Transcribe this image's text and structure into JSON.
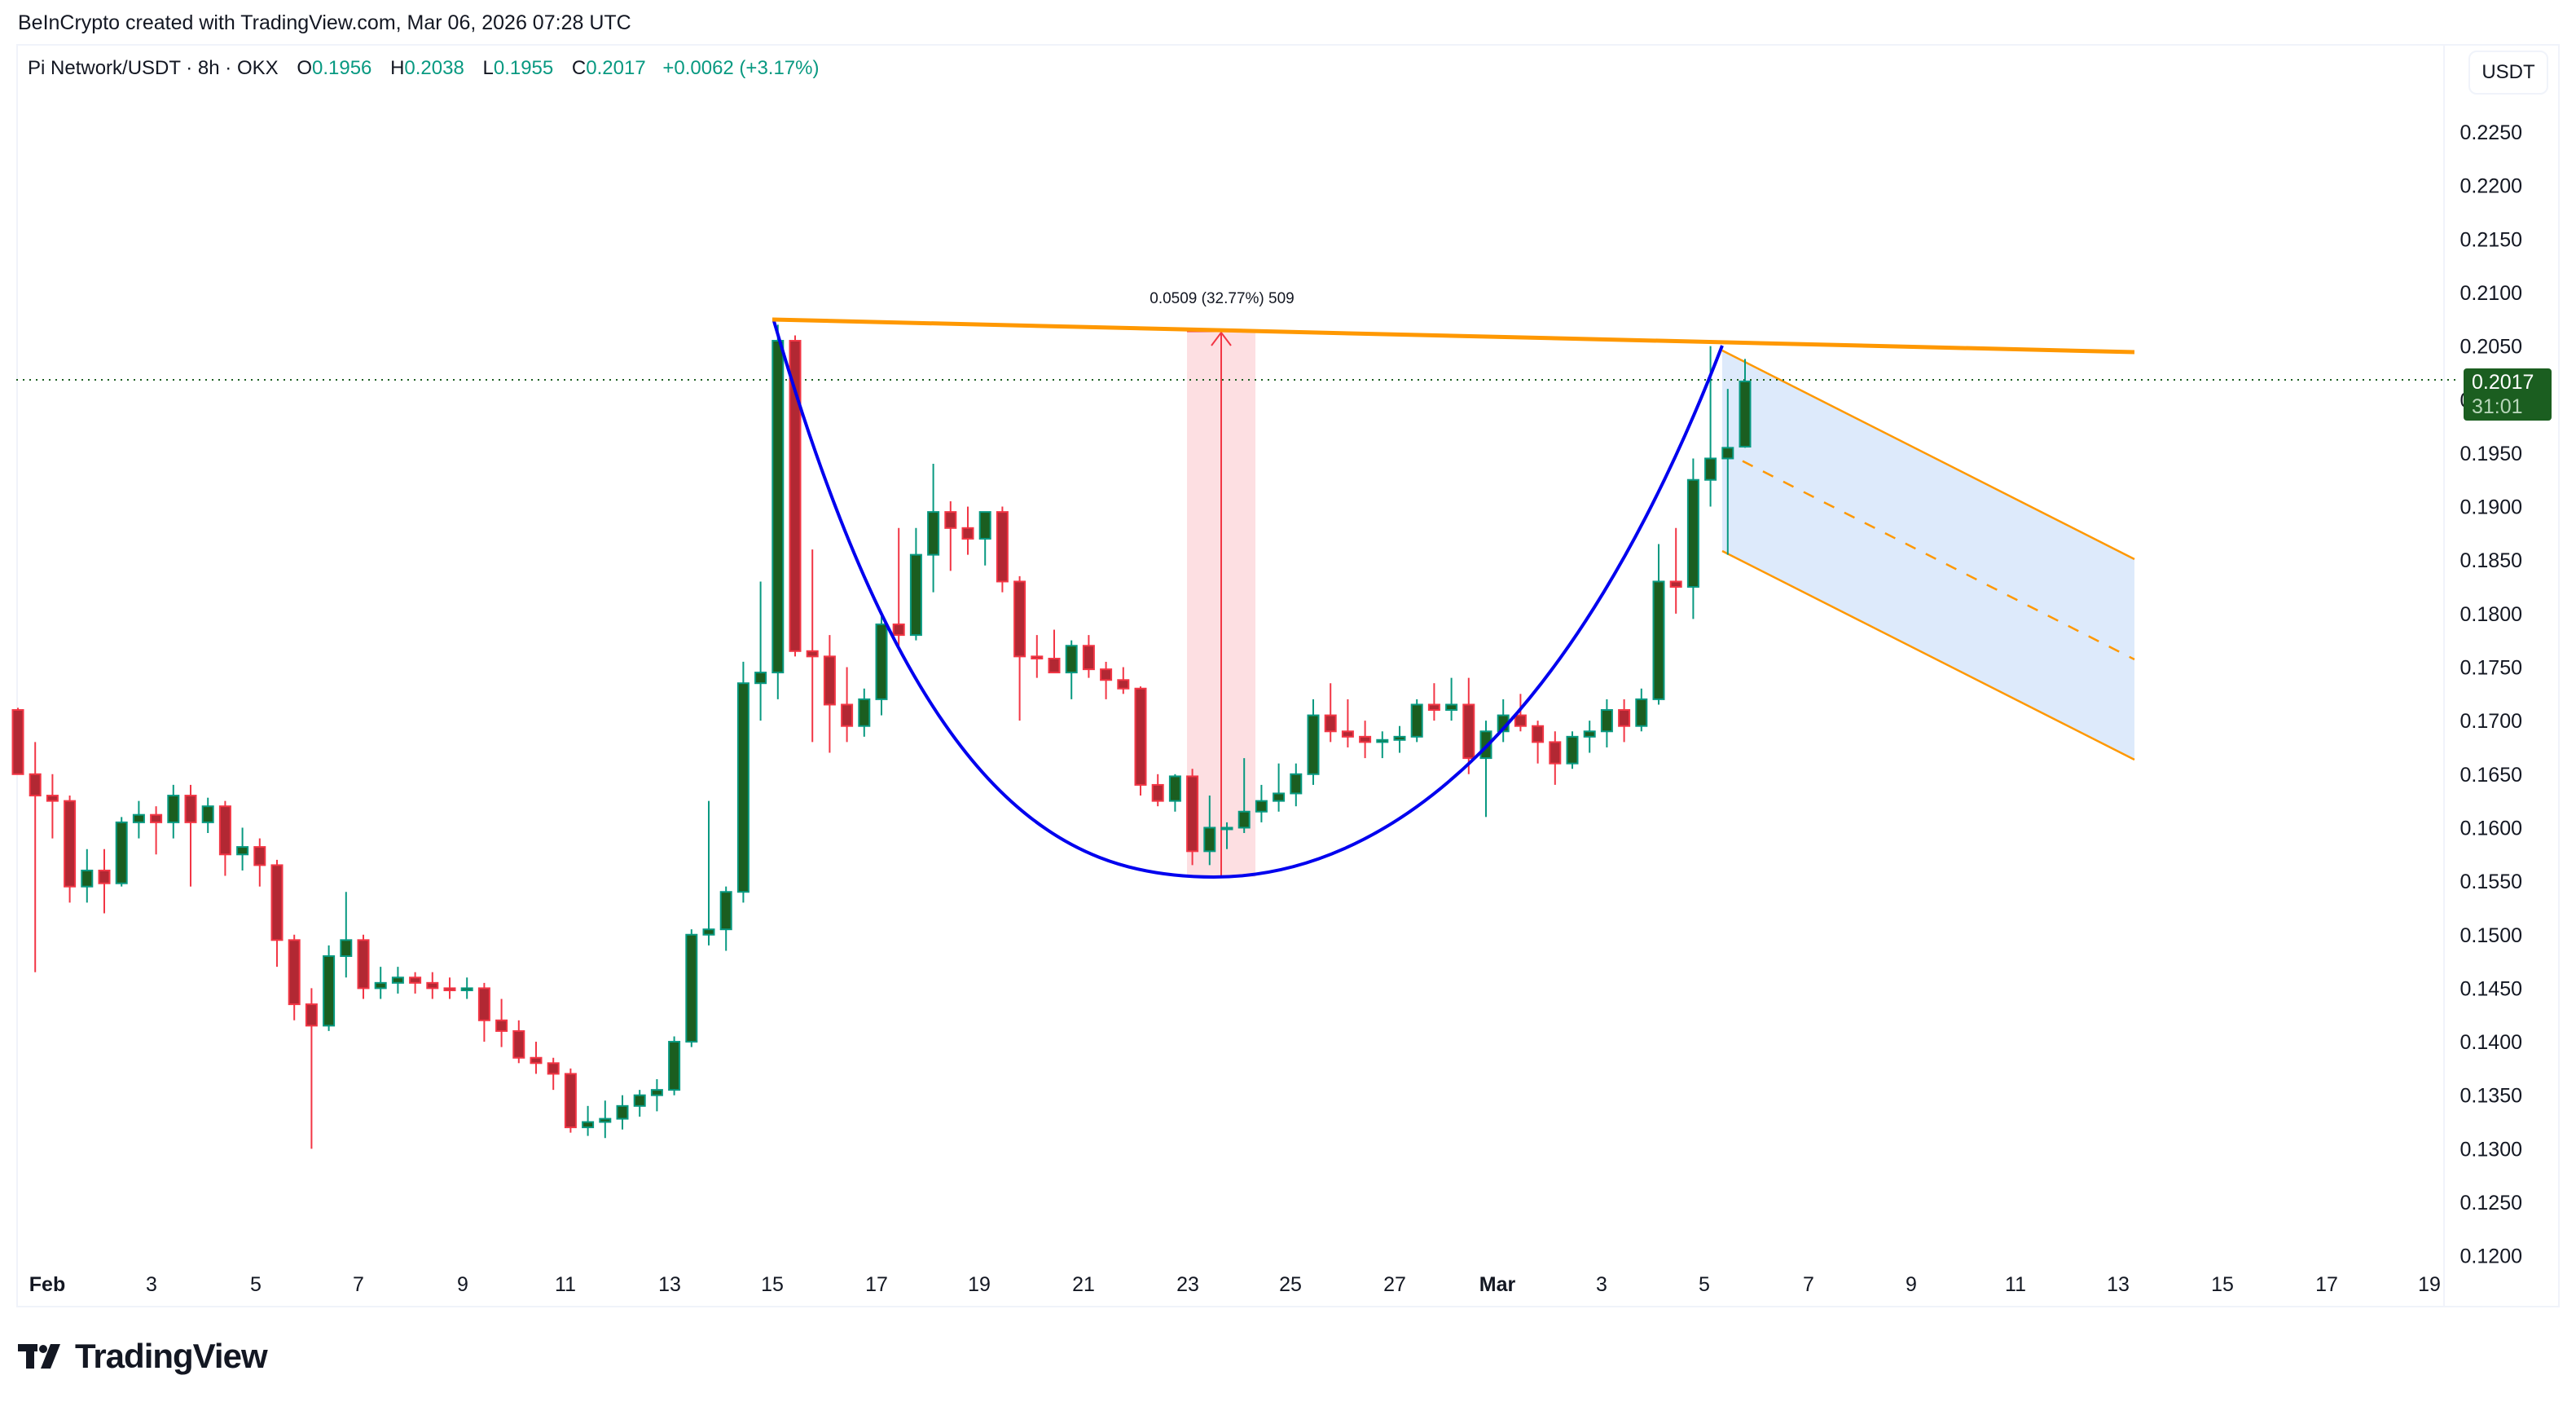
{
  "credit": "BeInCrypto created with TradingView.com, Mar 06, 2026 07:28 UTC",
  "legend": {
    "symbol": "Pi Network/USDT · 8h · OKX",
    "open_label": "O",
    "open": "0.1956",
    "high_label": "H",
    "high": "0.2038",
    "low_label": "L",
    "low": "0.1955",
    "close_label": "C",
    "close": "0.2017",
    "change": "+0.0062 (+3.17%)"
  },
  "currency_button": "USDT",
  "last_price": {
    "price": "0.2017",
    "countdown": "31:01"
  },
  "measure_label": "0.0509 (32.77%) 509",
  "brand": "TradingView",
  "colors": {
    "up_fill": "#1b5e20",
    "up_border": "#089981",
    "down_fill": "#b22833",
    "down_border": "#f23645",
    "cup": "#0000ee",
    "resistance": "#ff9800",
    "channel_fill": "#dbe9fb",
    "measure_fill": "#fddfe2",
    "measure_line": "#f23645",
    "last_line": "#1b5e20"
  },
  "chart_data": {
    "type": "candlestick",
    "title": "Pi Network/USDT · 8h · OKX",
    "xlabel": "",
    "ylabel": "USDT",
    "ylim": [
      0.12,
      0.2275
    ],
    "y_ticks": [
      "0.2250",
      "0.2200",
      "0.2150",
      "0.2100",
      "0.2050",
      "0.2000",
      "0.1950",
      "0.1900",
      "0.1850",
      "0.1800",
      "0.1750",
      "0.1700",
      "0.1650",
      "0.1600",
      "0.1550",
      "0.1500",
      "0.1450",
      "0.1400",
      "0.1350",
      "0.1300",
      "0.1250",
      "0.1200"
    ],
    "x_ticks": [
      {
        "label": "Feb",
        "x": 58,
        "bold": true
      },
      {
        "label": "3",
        "x": 186
      },
      {
        "label": "5",
        "x": 314
      },
      {
        "label": "7",
        "x": 440
      },
      {
        "label": "9",
        "x": 568
      },
      {
        "label": "11",
        "x": 694
      },
      {
        "label": "13",
        "x": 822
      },
      {
        "label": "15",
        "x": 948
      },
      {
        "label": "17",
        "x": 1076
      },
      {
        "label": "19",
        "x": 1202
      },
      {
        "label": "21",
        "x": 1330
      },
      {
        "label": "23",
        "x": 1458
      },
      {
        "label": "25",
        "x": 1584
      },
      {
        "label": "27",
        "x": 1712
      },
      {
        "label": "Mar",
        "x": 1838,
        "bold": true
      },
      {
        "label": "3",
        "x": 1966
      },
      {
        "label": "5",
        "x": 2092
      },
      {
        "label": "7",
        "x": 2220
      },
      {
        "label": "9",
        "x": 2346
      },
      {
        "label": "11",
        "x": 2474
      },
      {
        "label": "13",
        "x": 2600
      },
      {
        "label": "15",
        "x": 2728
      },
      {
        "label": "17",
        "x": 2856
      },
      {
        "label": "19",
        "x": 2982
      }
    ],
    "candles_ohlc": [
      [
        0.171,
        0.1712,
        0.165,
        0.165
      ],
      [
        0.165,
        0.168,
        0.1465,
        0.163
      ],
      [
        0.163,
        0.165,
        0.159,
        0.1625
      ],
      [
        0.1625,
        0.163,
        0.153,
        0.1545
      ],
      [
        0.1545,
        0.158,
        0.153,
        0.156
      ],
      [
        0.156,
        0.158,
        0.152,
        0.1548
      ],
      [
        0.1548,
        0.161,
        0.1545,
        0.1605
      ],
      [
        0.1605,
        0.1625,
        0.159,
        0.1612
      ],
      [
        0.1612,
        0.162,
        0.1575,
        0.1605
      ],
      [
        0.1605,
        0.164,
        0.159,
        0.163
      ],
      [
        0.163,
        0.164,
        0.1545,
        0.1605
      ],
      [
        0.1605,
        0.1628,
        0.1595,
        0.162
      ],
      [
        0.162,
        0.1625,
        0.1555,
        0.1575
      ],
      [
        0.1575,
        0.16,
        0.156,
        0.1582
      ],
      [
        0.1582,
        0.159,
        0.1545,
        0.1565
      ],
      [
        0.1565,
        0.157,
        0.147,
        0.1495
      ],
      [
        0.1495,
        0.15,
        0.142,
        0.1435
      ],
      [
        0.1435,
        0.145,
        0.13,
        0.1415
      ],
      [
        0.1415,
        0.149,
        0.141,
        0.148
      ],
      [
        0.148,
        0.154,
        0.146,
        0.1495
      ],
      [
        0.1495,
        0.15,
        0.144,
        0.145
      ],
      [
        0.145,
        0.147,
        0.144,
        0.1455
      ],
      [
        0.1455,
        0.147,
        0.1445,
        0.146
      ],
      [
        0.146,
        0.1465,
        0.1445,
        0.1455
      ],
      [
        0.1455,
        0.1465,
        0.144,
        0.145
      ],
      [
        0.145,
        0.146,
        0.144,
        0.1448
      ],
      [
        0.1448,
        0.146,
        0.144,
        0.145
      ],
      [
        0.145,
        0.1455,
        0.14,
        0.142
      ],
      [
        0.142,
        0.144,
        0.1395,
        0.141
      ],
      [
        0.141,
        0.142,
        0.138,
        0.1385
      ],
      [
        0.1385,
        0.14,
        0.137,
        0.138
      ],
      [
        0.138,
        0.1385,
        0.1355,
        0.137
      ],
      [
        0.137,
        0.1375,
        0.1315,
        0.132
      ],
      [
        0.132,
        0.134,
        0.1312,
        0.1325
      ],
      [
        0.1325,
        0.1345,
        0.131,
        0.1328
      ],
      [
        0.1328,
        0.135,
        0.1318,
        0.134
      ],
      [
        0.134,
        0.1355,
        0.133,
        0.135
      ],
      [
        0.135,
        0.1365,
        0.1335,
        0.1355
      ],
      [
        0.1355,
        0.1405,
        0.135,
        0.14
      ],
      [
        0.14,
        0.1505,
        0.1395,
        0.15
      ],
      [
        0.15,
        0.1625,
        0.149,
        0.1505
      ],
      [
        0.1505,
        0.1545,
        0.1485,
        0.154
      ],
      [
        0.154,
        0.1755,
        0.153,
        0.1735
      ],
      [
        0.1735,
        0.183,
        0.17,
        0.1745
      ],
      [
        0.1745,
        0.207,
        0.172,
        0.2055
      ],
      [
        0.2055,
        0.206,
        0.176,
        0.1765
      ],
      [
        0.1765,
        0.186,
        0.168,
        0.176
      ],
      [
        0.176,
        0.178,
        0.167,
        0.1715
      ],
      [
        0.1715,
        0.175,
        0.168,
        0.1695
      ],
      [
        0.1695,
        0.173,
        0.1685,
        0.172
      ],
      [
        0.172,
        0.18,
        0.1705,
        0.179
      ],
      [
        0.179,
        0.188,
        0.177,
        0.178
      ],
      [
        0.178,
        0.188,
        0.1775,
        0.1855
      ],
      [
        0.1855,
        0.194,
        0.182,
        0.1895
      ],
      [
        0.1895,
        0.1905,
        0.184,
        0.188
      ],
      [
        0.188,
        0.19,
        0.1855,
        0.187
      ],
      [
        0.187,
        0.1895,
        0.1845,
        0.1895
      ],
      [
        0.1895,
        0.19,
        0.182,
        0.183
      ],
      [
        0.183,
        0.1835,
        0.17,
        0.176
      ],
      [
        0.176,
        0.178,
        0.174,
        0.1758
      ],
      [
        0.1758,
        0.1785,
        0.1745,
        0.1745
      ],
      [
        0.1745,
        0.1775,
        0.172,
        0.177
      ],
      [
        0.177,
        0.178,
        0.174,
        0.1748
      ],
      [
        0.1748,
        0.1755,
        0.172,
        0.1738
      ],
      [
        0.1738,
        0.175,
        0.1725,
        0.173
      ],
      [
        0.173,
        0.1732,
        0.163,
        0.164
      ],
      [
        0.164,
        0.165,
        0.162,
        0.1625
      ],
      [
        0.1625,
        0.165,
        0.1615,
        0.1648
      ],
      [
        0.1648,
        0.1655,
        0.1565,
        0.1578
      ],
      [
        0.1578,
        0.163,
        0.1565,
        0.16
      ],
      [
        0.16,
        0.1605,
        0.158,
        0.16
      ],
      [
        0.16,
        0.1665,
        0.1595,
        0.1615
      ],
      [
        0.1615,
        0.164,
        0.1605,
        0.1625
      ],
      [
        0.1625,
        0.166,
        0.1615,
        0.1632
      ],
      [
        0.1632,
        0.166,
        0.162,
        0.165
      ],
      [
        0.165,
        0.172,
        0.164,
        0.1705
      ],
      [
        0.1705,
        0.1735,
        0.168,
        0.169
      ],
      [
        0.169,
        0.172,
        0.1675,
        0.1685
      ],
      [
        0.1685,
        0.17,
        0.1665,
        0.168
      ],
      [
        0.168,
        0.169,
        0.1665,
        0.1682
      ],
      [
        0.1682,
        0.1695,
        0.167,
        0.1685
      ],
      [
        0.1685,
        0.172,
        0.168,
        0.1715
      ],
      [
        0.1715,
        0.1735,
        0.17,
        0.171
      ],
      [
        0.171,
        0.174,
        0.17,
        0.1715
      ],
      [
        0.1715,
        0.174,
        0.165,
        0.1665
      ],
      [
        0.1665,
        0.17,
        0.161,
        0.169
      ],
      [
        0.169,
        0.172,
        0.168,
        0.1705
      ],
      [
        0.1705,
        0.1725,
        0.169,
        0.1695
      ],
      [
        0.1695,
        0.17,
        0.166,
        0.168
      ],
      [
        0.168,
        0.169,
        0.164,
        0.166
      ],
      [
        0.166,
        0.169,
        0.1655,
        0.1685
      ],
      [
        0.1685,
        0.17,
        0.167,
        0.169
      ],
      [
        0.169,
        0.172,
        0.1675,
        0.171
      ],
      [
        0.171,
        0.172,
        0.168,
        0.1695
      ],
      [
        0.1695,
        0.173,
        0.169,
        0.172
      ],
      [
        0.172,
        0.1865,
        0.1715,
        0.183
      ],
      [
        0.183,
        0.188,
        0.18,
        0.1825
      ],
      [
        0.1825,
        0.1945,
        0.1795,
        0.1925
      ],
      [
        0.1925,
        0.205,
        0.19,
        0.1945
      ],
      [
        0.1945,
        0.201,
        0.1855,
        0.1955
      ],
      [
        0.1956,
        0.2038,
        0.1955,
        0.2017
      ]
    ],
    "annotations": {
      "cup_curve": "blue rounded bottom from Feb 15 high (~0.2070) to low ~0.1550 (Feb 23-24) back to ~0.2050 (Mar 5)",
      "resistance_line": {
        "from": "Feb 15 ~0.2070",
        "to": "Mar 13 ~0.2043",
        "color": "orange"
      },
      "measurement": {
        "label": "0.0509 (32.77%) 509",
        "from": 0.1553,
        "to": 0.2062
      },
      "descending_channel": {
        "upper_from": 0.205,
        "upper_to": 0.1848,
        "lower_from": 0.1863,
        "lower_to": 0.1662,
        "x_from": "Mar 5",
        "x_to": "Mar 13"
      },
      "last_price_line": 0.2017
    }
  }
}
